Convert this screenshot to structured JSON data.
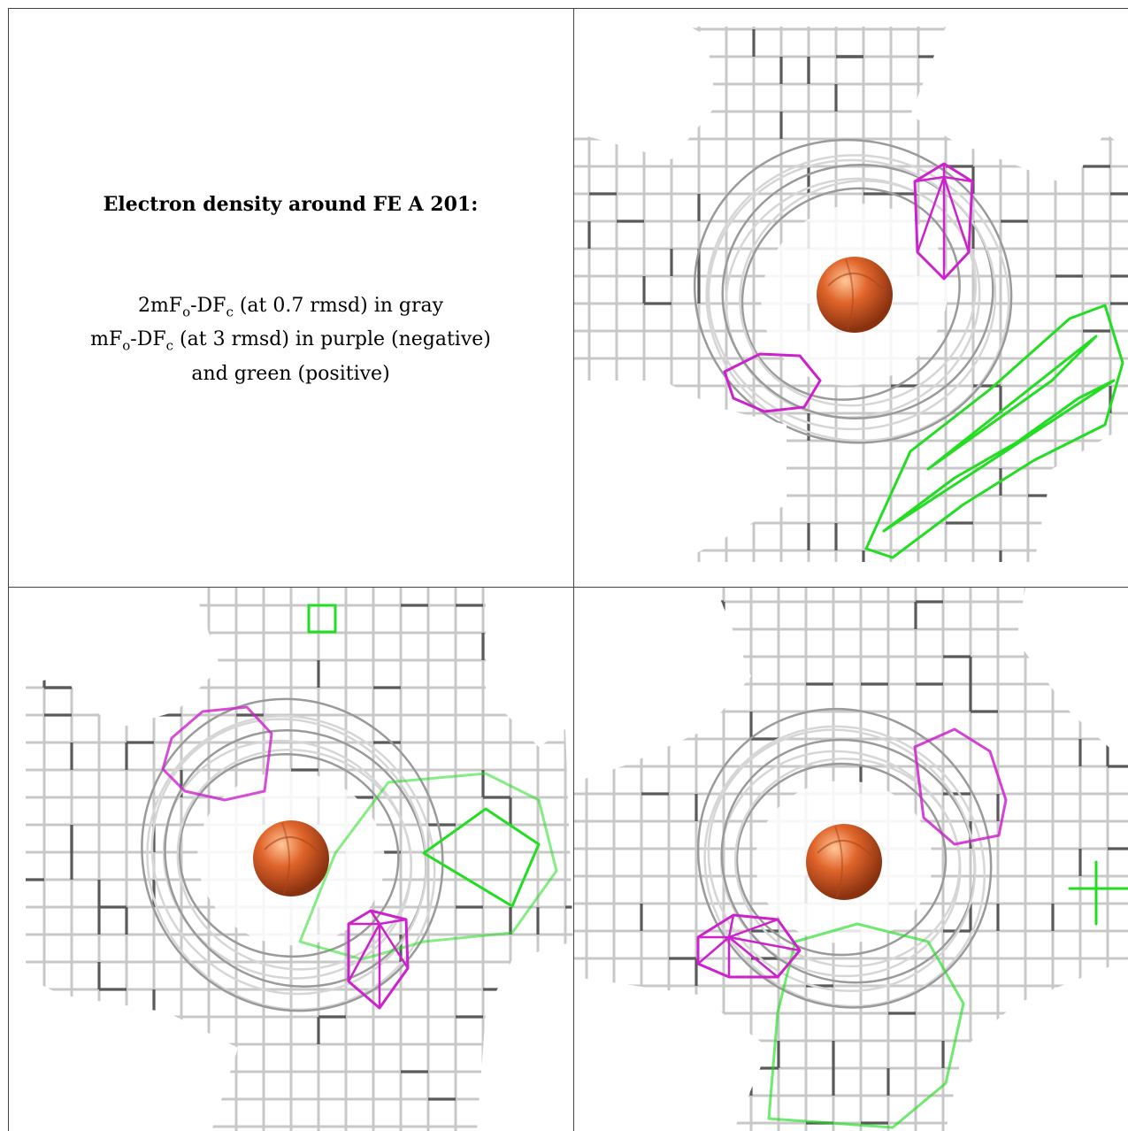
{
  "caption": {
    "title": "Electron density around FE A 201:",
    "line1_prefix": "2mF",
    "line1_sub1": "o",
    "line1_mid": "-DF",
    "line1_sub2": "c",
    "line1_suffix": " (at 0.7 rmsd) in gray",
    "line2_prefix": "mF",
    "line2_sub1": "o",
    "line2_mid": "-DF",
    "line2_sub2": "c",
    "line2_suffix": " (at 3 rmsd) in purple (negative)",
    "line3": "and green (positive)"
  },
  "colors": {
    "mesh_gray": "#c8c8c8",
    "mesh_dark": "#5a5a5a",
    "negative_purple": "#cc22cc",
    "positive_green": "#22dd22",
    "iron_orange": "#e0642a"
  }
}
